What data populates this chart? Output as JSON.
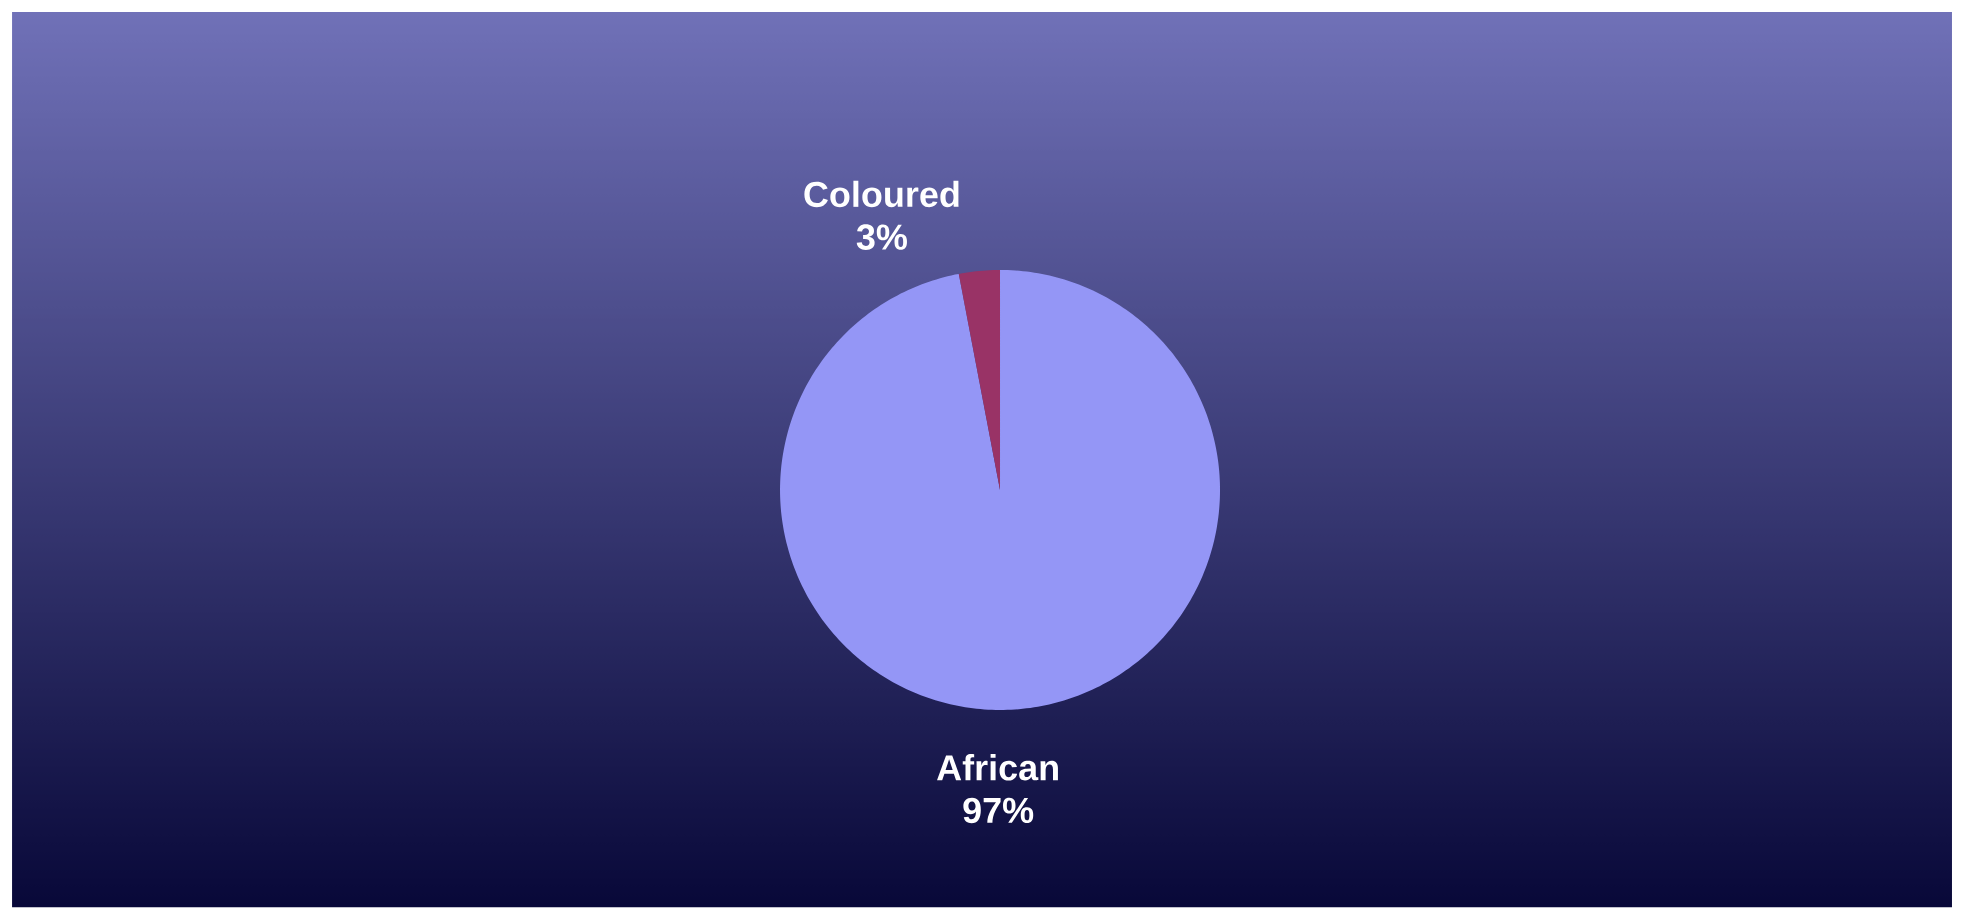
{
  "chart_data": {
    "type": "pie",
    "categories": [
      "African",
      "Coloured"
    ],
    "values": [
      97,
      3
    ],
    "value_labels": [
      "97%",
      "3%"
    ],
    "colors": [
      "#9496f6",
      "#993366"
    ]
  }
}
